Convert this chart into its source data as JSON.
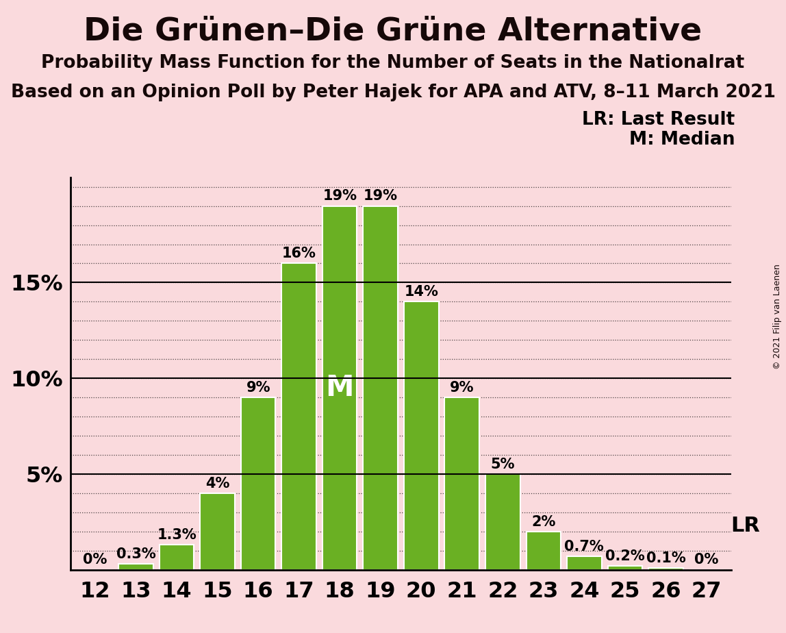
{
  "title": "Die Grünen–Die Grüne Alternative",
  "subtitle1": "Probability Mass Function for the Number of Seats in the Nationalrat",
  "subtitle2": "Based on an Opinion Poll by Peter Hajek for APA and ATV, 8–11 March 2021",
  "copyright": "© 2021 Filip van Laenen",
  "categories": [
    12,
    13,
    14,
    15,
    16,
    17,
    18,
    19,
    20,
    21,
    22,
    23,
    24,
    25,
    26,
    27
  ],
  "values": [
    0.0,
    0.3,
    1.3,
    4.0,
    9.0,
    16.0,
    19.0,
    19.0,
    14.0,
    9.0,
    5.0,
    2.0,
    0.7,
    0.2,
    0.1,
    0.0
  ],
  "bar_labels": [
    "0%",
    "0.3%",
    "1.3%",
    "4%",
    "9%",
    "16%",
    "19%",
    "19%",
    "14%",
    "9%",
    "5%",
    "2%",
    "0.7%",
    "0.2%",
    "0.1%",
    "0%"
  ],
  "bar_color": "#6ab023",
  "background_color": "#fadadd",
  "median_bar": 18,
  "median_label": "M",
  "lr_bar": 26,
  "lr_label": "LR",
  "ylim": [
    0,
    20.5
  ],
  "yticks": [
    5,
    10,
    15
  ],
  "ytick_labels": [
    "5%",
    "10%",
    "15%"
  ],
  "legend_lr": "LR: Last Result",
  "legend_m": "M: Median",
  "title_fontsize": 34,
  "subtitle_fontsize": 19,
  "axis_label_fontsize": 23,
  "bar_label_fontsize": 15,
  "legend_fontsize": 19
}
